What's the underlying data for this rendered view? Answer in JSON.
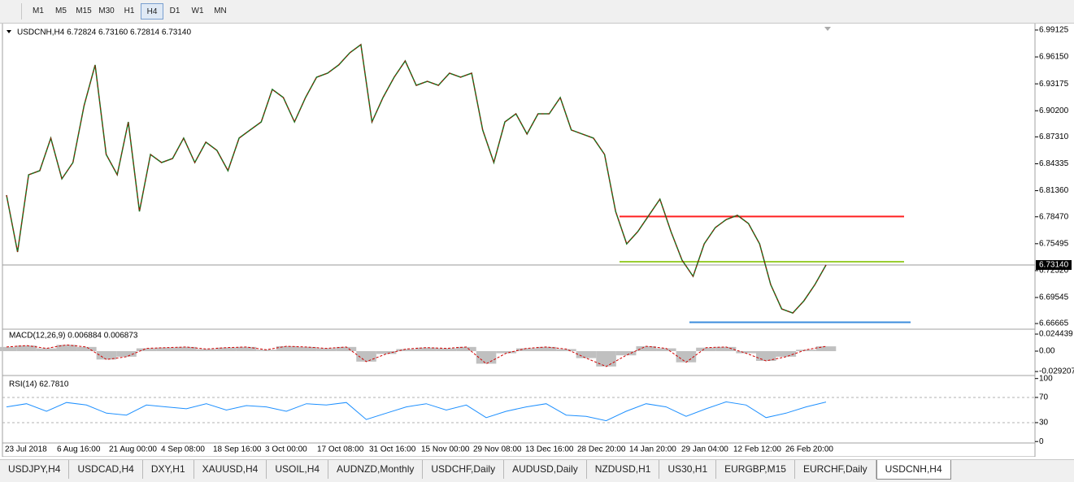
{
  "toolbar": {
    "timeframes": [
      "M1",
      "M5",
      "M15",
      "M30",
      "H1",
      "H4",
      "D1",
      "W1",
      "MN"
    ],
    "active": 5
  },
  "chart": {
    "symbol_label": "USDCNH,H4 6.72824 6.73160 6.72814 6.73140",
    "ylim": [
      6.6604,
      6.9975
    ],
    "yticks": [
      6.99125,
      {
        "value": 6.9615,
        "label": "6.96150"
      },
      6.93175,
      {
        "value": 6.902,
        "label": "6.90200"
      },
      {
        "value": 6.8731,
        "label": "6.87310"
      },
      6.84335,
      {
        "value": 6.8136,
        "label": "6.81360"
      },
      {
        "value": 6.7847,
        "label": "6.78470"
      },
      6.75495,
      {
        "value": 6.7252,
        "label": "6.72520"
      },
      6.69545,
      6.66665
    ],
    "current_price": {
      "value": 6.7314,
      "label": "6.73140"
    },
    "levels": [
      {
        "value": 6.785,
        "color": "#ff2020"
      },
      {
        "value": 6.735,
        "color": "#9acd32"
      },
      {
        "value": 6.668,
        "color": "#3c8cdc"
      }
    ],
    "closes": [
      6.8087,
      6.7458,
      6.8312,
      6.8357,
      6.8717,
      6.8267,
      6.8447,
      6.9076,
      6.9526,
      6.8537,
      6.8312,
      6.8896,
      6.7907,
      6.8537,
      6.8447,
      6.8492,
      6.8717,
      6.8447,
      6.8672,
      6.8582,
      6.8357,
      6.8717,
      6.8807,
      6.8896,
      6.9256,
      6.9166,
      6.8896,
      6.9166,
      6.9391,
      6.9436,
      6.9526,
      6.9661,
      6.9751,
      6.8896,
      6.9166,
      6.9391,
      6.9571,
      6.9301,
      6.9346,
      6.9301,
      6.9436,
      6.9391,
      6.9436,
      6.8807,
      6.8447,
      6.8896,
      6.8986,
      6.8762,
      6.8986,
      6.8986,
      6.9166,
      6.8807,
      6.8762,
      6.8717,
      6.8537,
      6.7907,
      6.7548,
      6.7683,
      6.7863,
      6.8042,
      6.7683,
      6.7368,
      6.7188,
      6.7548,
      6.7728,
      6.7818,
      6.7863,
      6.7773,
      6.7548,
      6.7098,
      6.6828,
      6.6783,
      6.6918,
      6.7098,
      6.7314
    ],
    "xlabels": [
      "23 Jul 2018",
      "6 Aug 16:00",
      "21 Aug 00:00",
      "4 Sep 08:00",
      "18 Sep 16:00",
      "3 Oct 00:00",
      "17 Oct 08:00",
      "31 Oct 16:00",
      "15 Nov 00:00",
      "29 Nov 08:00",
      "13 Dec 16:00",
      "28 Dec 20:00",
      "14 Jan 20:00",
      "29 Jan 04:00",
      "12 Feb 12:00",
      "26 Feb 20:00"
    ]
  },
  "macd": {
    "label": "MACD(12,26,9) 0.006884 0.006873",
    "ylim": [
      -0.0326,
      0.0303
    ],
    "yticks": [
      0.024439,
      {
        "value": 0,
        "label": "0.00"
      },
      -0.029207
    ],
    "values": [
      0.006,
      0.008,
      0.004,
      0.009,
      0.006,
      -0.012,
      -0.008,
      0.004,
      0.005,
      0.006,
      0.003,
      0.005,
      0.006,
      0.002,
      0.007,
      0.006,
      0.004,
      0.006,
      -0.015,
      -0.004,
      0.003,
      0.005,
      0.004,
      0.006,
      -0.018,
      -0.003,
      0.004,
      0.006,
      0.003,
      -0.01,
      -0.022,
      -0.006,
      0.007,
      0.004,
      -0.016,
      0.005,
      0.006,
      -0.003,
      -0.014,
      -0.008,
      0.002,
      0.0069
    ]
  },
  "rsi": {
    "label": "RSI(14) 62.7810",
    "ylim": [
      -2.3,
      103.5
    ],
    "yticks": [
      100,
      70,
      30,
      0
    ],
    "levels": [
      70,
      30
    ],
    "values": [
      55,
      60,
      48,
      62,
      58,
      45,
      42,
      58,
      55,
      52,
      60,
      50,
      57,
      55,
      48,
      60,
      58,
      62,
      35,
      45,
      55,
      60,
      50,
      58,
      38,
      48,
      55,
      60,
      42,
      40,
      33,
      48,
      60,
      55,
      40,
      52,
      63,
      58,
      38,
      45,
      55,
      62.78
    ]
  },
  "tabs": [
    "USDJPY,H4",
    "USDCAD,H4",
    "DXY,H1",
    "XAUUSD,H4",
    "USOIL,H4",
    "AUDNZD,Monthly",
    "USDCHF,Daily",
    "AUDUSD,Daily",
    "NZDUSD,H1",
    "US30,H1",
    "EURGBP,M15",
    "EURCHF,Daily",
    "USDCNH,H4"
  ],
  "active_tab": 12
}
